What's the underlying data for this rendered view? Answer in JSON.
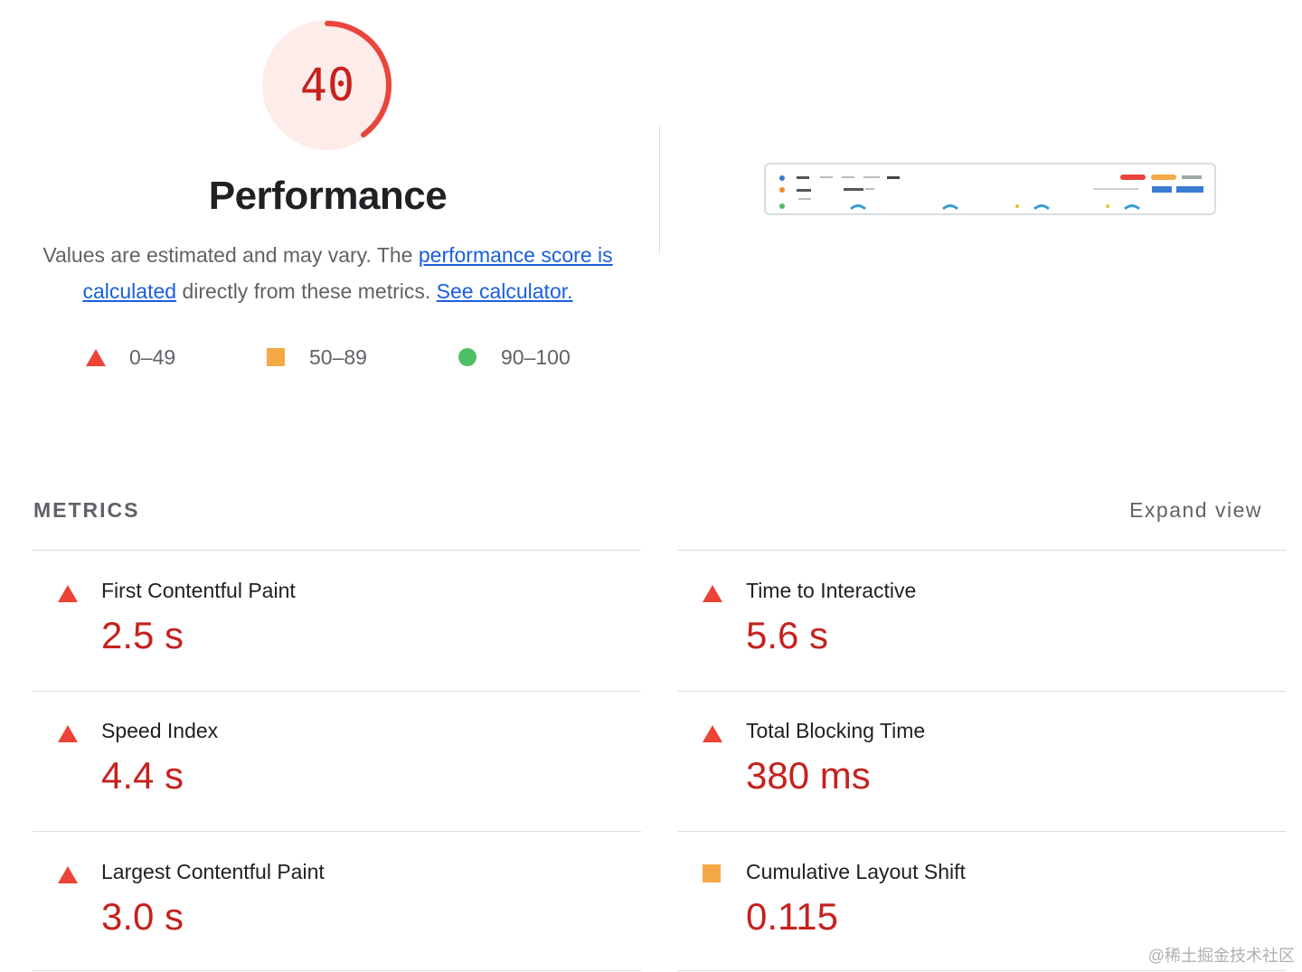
{
  "performance": {
    "score": "40",
    "score_fraction": 0.4,
    "title": "Performance",
    "description_prefix": "Values are estimated and may vary. The ",
    "link_score": "performance score is calculated",
    "description_middle": " directly from these metrics. ",
    "link_calculator": "See calculator."
  },
  "legend": [
    {
      "label": "0–49",
      "shape": "triangle",
      "color": "#eb4336"
    },
    {
      "label": "50–89",
      "shape": "square",
      "color": "#f4a945"
    },
    {
      "label": "90–100",
      "shape": "circle",
      "color": "#4dbf67"
    }
  ],
  "metrics_section": {
    "heading": "METRICS",
    "expand_label": "Expand view"
  },
  "metrics": [
    {
      "label": "First Contentful Paint",
      "value": "2.5 s",
      "rating": "fail"
    },
    {
      "label": "Time to Interactive",
      "value": "5.6 s",
      "rating": "fail"
    },
    {
      "label": "Speed Index",
      "value": "4.4 s",
      "rating": "fail"
    },
    {
      "label": "Total Blocking Time",
      "value": "380 ms",
      "rating": "fail"
    },
    {
      "label": "Largest Contentful Paint",
      "value": "3.0 s",
      "rating": "fail"
    },
    {
      "label": "Cumulative Layout Shift",
      "value": "0.115",
      "rating": "average"
    }
  ],
  "colors": {
    "fail": "#eb4336",
    "average": "#f4a945",
    "pass": "#4dbf67",
    "fail_text": "#c5221f",
    "link": "#1a5fdc"
  },
  "watermark": "@稀土掘金技术社区"
}
